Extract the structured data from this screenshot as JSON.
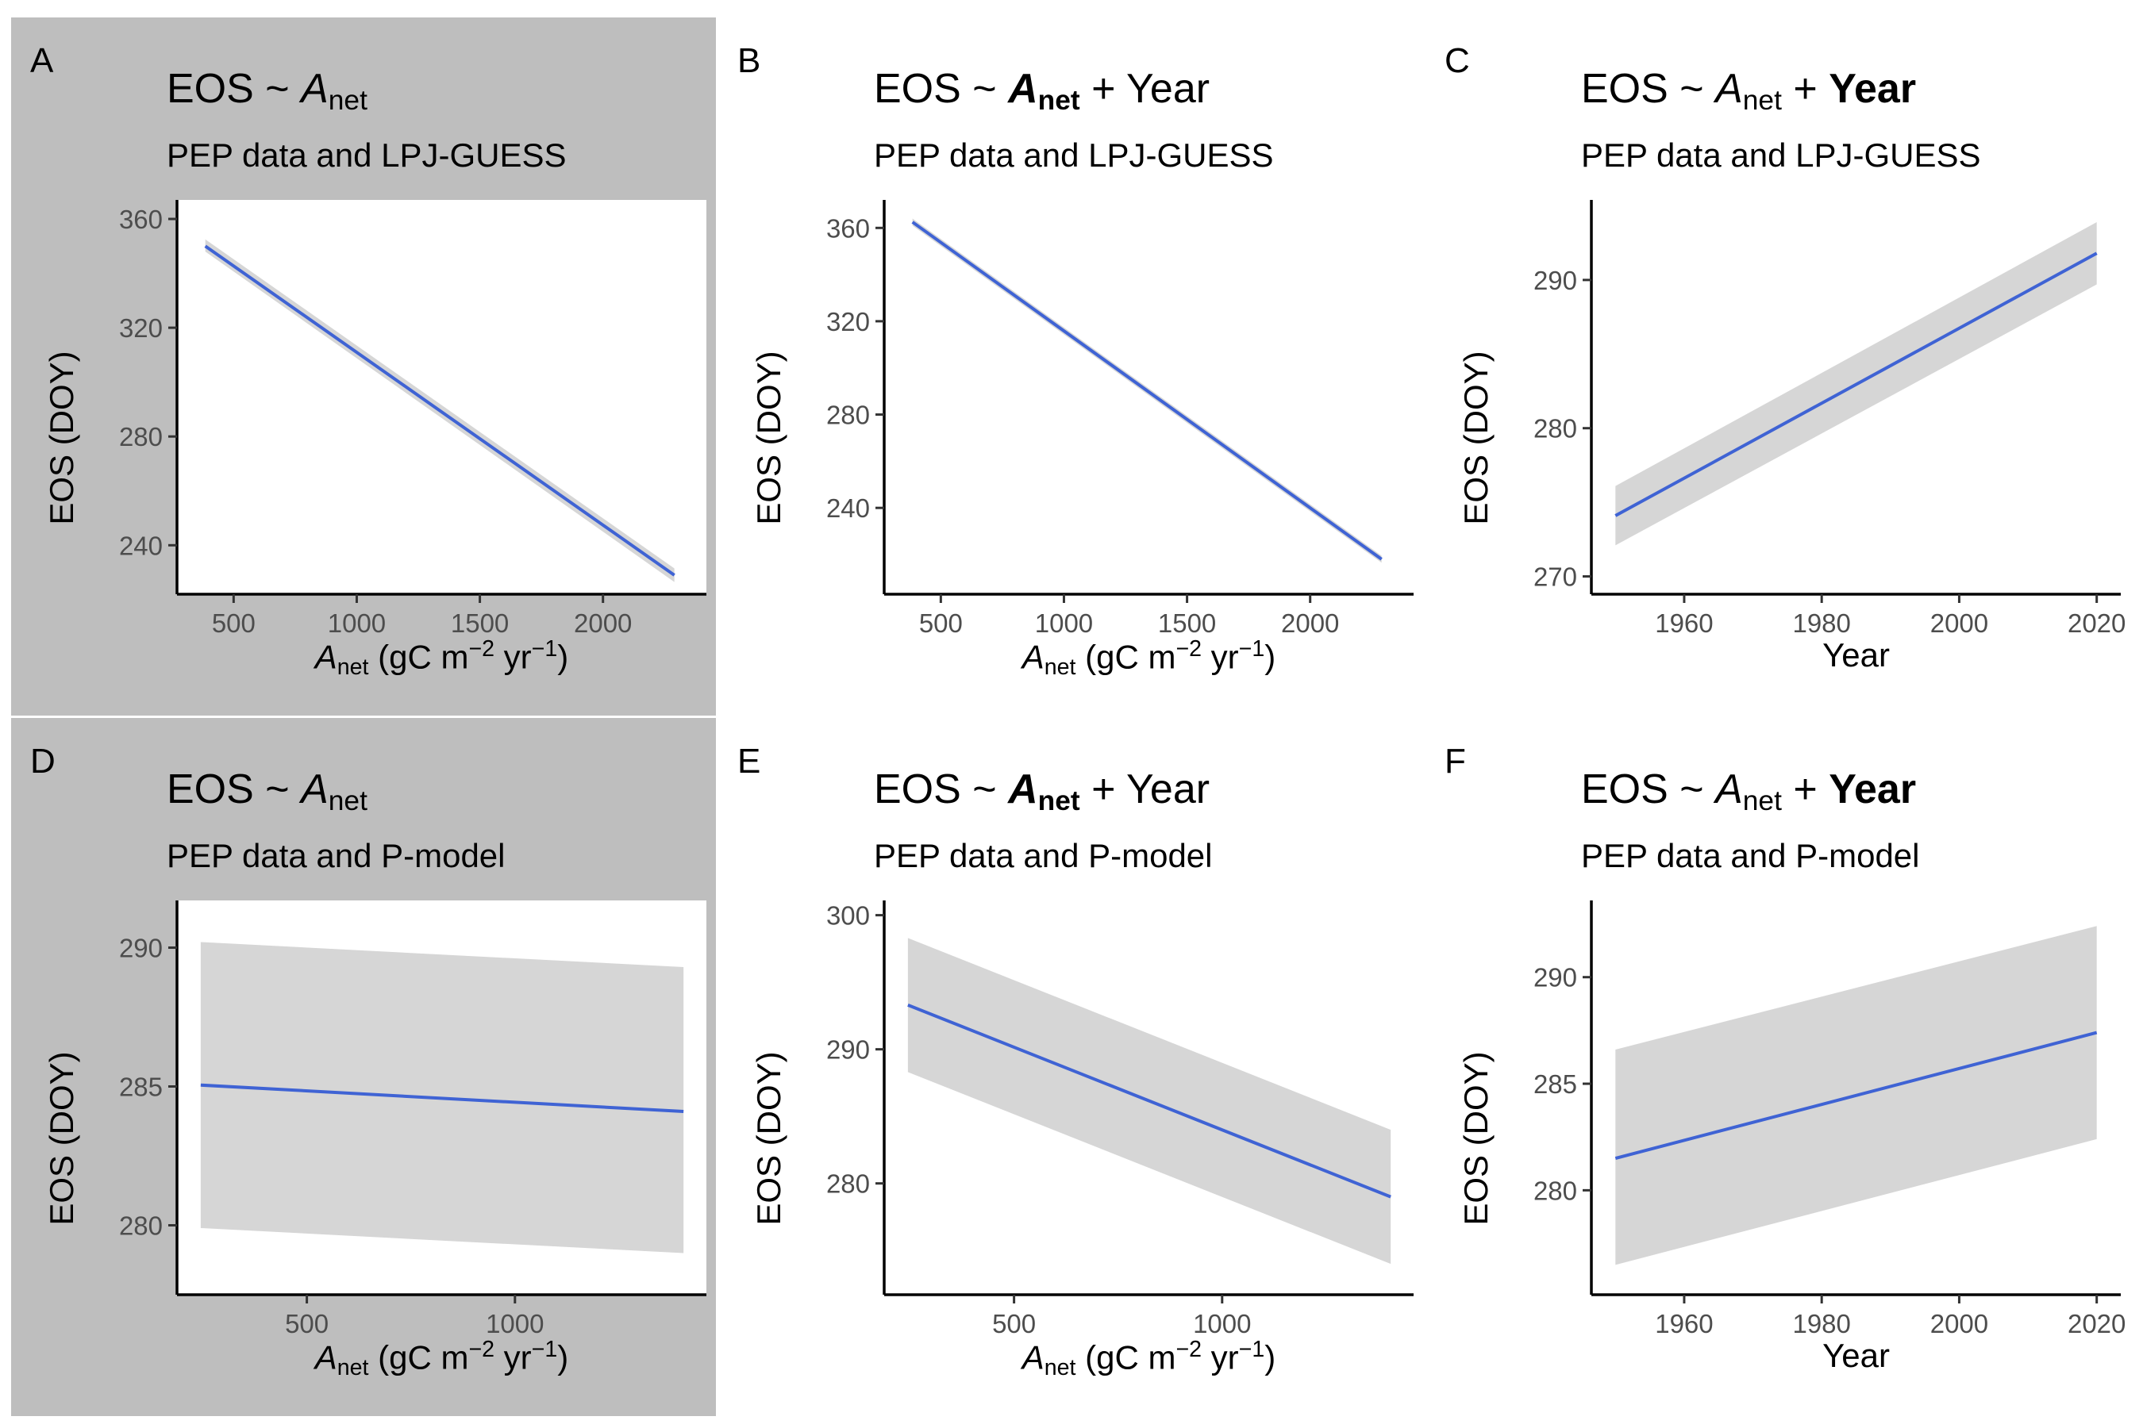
{
  "chart_data": [
    {
      "id": "A",
      "letter": "A",
      "type": "line",
      "title_parts": [
        "EOS ~ ",
        "A",
        "net",
        ""
      ],
      "title_bold": "none",
      "subtitle": "PEP data and LPJ-GUESS",
      "xlabel_parts": [
        "A",
        "net",
        " (gC m",
        "−2",
        " yr",
        "−1",
        ")"
      ],
      "ylabel": "EOS (DOY)",
      "xlim": [
        270,
        2420
      ],
      "ylim": [
        222,
        367
      ],
      "xticks": [
        500,
        1000,
        1500,
        2000
      ],
      "yticks": [
        240,
        280,
        320,
        360
      ],
      "x": [
        385,
        2290
      ],
      "y": [
        350,
        229
      ],
      "ci_lower": [
        348,
        226.5
      ],
      "ci_upper": [
        352.5,
        231.5
      ],
      "background": "gray",
      "panel_inner": "white"
    },
    {
      "id": "B",
      "letter": "B",
      "type": "line",
      "title_parts": [
        "EOS ~ ",
        "A",
        "net",
        " + Year"
      ],
      "title_bold": "predictor",
      "subtitle": "PEP data and LPJ-GUESS",
      "xlabel_parts": [
        "A",
        "net",
        " (gC m",
        "−2",
        " yr",
        "−1",
        ")"
      ],
      "ylabel": "EOS (DOY)",
      "xlim": [
        270,
        2420
      ],
      "ylim": [
        203,
        372
      ],
      "xticks": [
        500,
        1000,
        1500,
        2000
      ],
      "yticks": [
        240,
        280,
        320,
        360
      ],
      "x": [
        385,
        2290
      ],
      "y": [
        362.5,
        218
      ],
      "ci_lower": [
        361,
        216.5
      ],
      "ci_upper": [
        364,
        219.5
      ],
      "background": "white",
      "panel_inner": "white"
    },
    {
      "id": "C",
      "letter": "C",
      "type": "line",
      "title_parts": [
        "EOS ~ ",
        "A",
        "net",
        " + Year"
      ],
      "title_bold": "year",
      "subtitle": "PEP data and LPJ-GUESS",
      "xlabel_text": "Year",
      "ylabel": "EOS (DOY)",
      "xlim": [
        1946.5,
        2023.5
      ],
      "ylim": [
        268.8,
        295.4
      ],
      "xticks": [
        1960,
        1980,
        2000,
        2020
      ],
      "yticks": [
        270,
        280,
        290
      ],
      "x": [
        1950,
        2020
      ],
      "y": [
        274.1,
        291.8
      ],
      "ci_lower": [
        272.1,
        289.7
      ],
      "ci_upper": [
        276.1,
        293.9
      ],
      "background": "white",
      "panel_inner": "white"
    },
    {
      "id": "D",
      "letter": "D",
      "type": "line",
      "title_parts": [
        "EOS ~ ",
        "A",
        "net",
        ""
      ],
      "title_bold": "none",
      "subtitle": "PEP data and P-model",
      "xlabel_parts": [
        "A",
        "net",
        " (gC m",
        "−2",
        " yr",
        "−1",
        ")"
      ],
      "ylabel": "EOS (DOY)",
      "xlim": [
        188,
        1460
      ],
      "ylim": [
        277.5,
        291.7
      ],
      "xticks": [
        500,
        1000
      ],
      "yticks": [
        280,
        285,
        290
      ],
      "x": [
        245,
        1405
      ],
      "y": [
        285.05,
        284.1
      ],
      "ci_lower": [
        279.9,
        279
      ],
      "ci_upper": [
        290.2,
        289.3
      ],
      "background": "gray",
      "panel_inner": "white"
    },
    {
      "id": "E",
      "letter": "E",
      "type": "line",
      "title_parts": [
        "EOS ~ ",
        "A",
        "net",
        " + Year"
      ],
      "title_bold": "predictor",
      "subtitle": "PEP data and P-model",
      "xlabel_parts": [
        "A",
        "net",
        " (gC m",
        "−2",
        " yr",
        "−1",
        ")"
      ],
      "ylabel": "EOS (DOY)",
      "xlim": [
        188,
        1460
      ],
      "ylim": [
        271.7,
        301.1
      ],
      "xticks": [
        500,
        1000
      ],
      "yticks": [
        280,
        290,
        300
      ],
      "x": [
        245,
        1405
      ],
      "y": [
        293.3,
        279
      ],
      "ci_lower": [
        288.3,
        274
      ],
      "ci_upper": [
        298.3,
        284
      ],
      "background": "white",
      "panel_inner": "white"
    },
    {
      "id": "F",
      "letter": "F",
      "type": "line",
      "title_parts": [
        "EOS ~ ",
        "A",
        "net",
        " + Year"
      ],
      "title_bold": "year",
      "subtitle": "PEP data and P-model",
      "xlabel_text": "Year",
      "ylabel": "EOS (DOY)",
      "xlim": [
        1946.5,
        2023.5
      ],
      "ylim": [
        275.1,
        293.6
      ],
      "xticks": [
        1960,
        1980,
        2000,
        2020
      ],
      "yticks": [
        280,
        285,
        290
      ],
      "x": [
        1950,
        2020
      ],
      "y": [
        281.5,
        287.4
      ],
      "ci_lower": [
        276.5,
        282.4
      ],
      "ci_upper": [
        286.6,
        292.4
      ],
      "background": "white",
      "panel_inner": "white"
    }
  ],
  "colors": {
    "line": "#3f63d4",
    "ribbon": "#d6d6d6",
    "gray_panel": "#bebebe",
    "axis": "#000000",
    "tick_text": "#4d4d4d"
  }
}
